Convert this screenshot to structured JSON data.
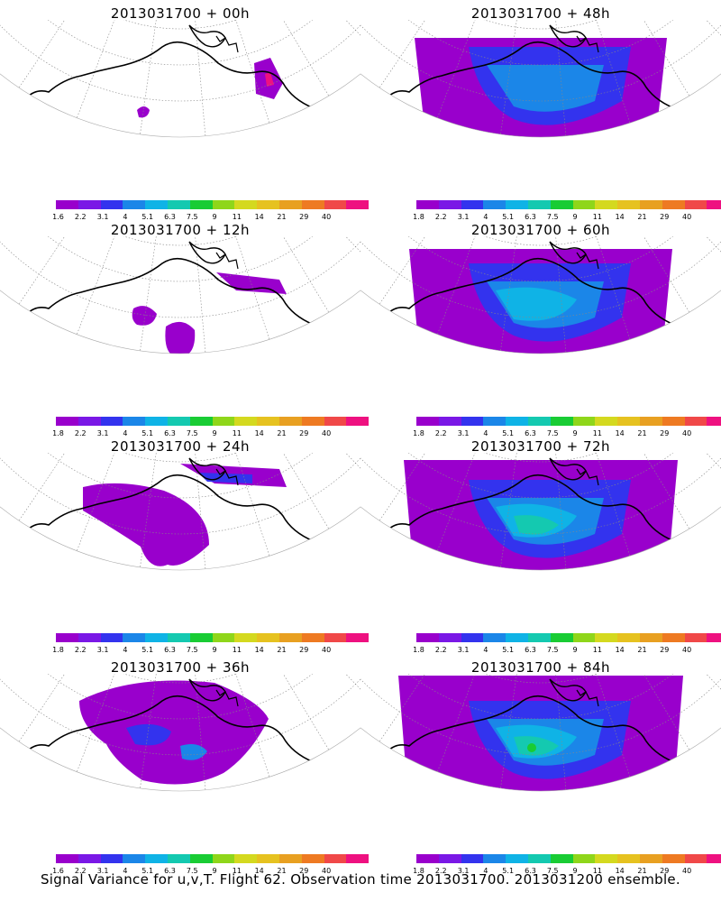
{
  "panels": [
    {
      "title": "2013031700 + 00h",
      "stage": 0
    },
    {
      "title": "2013031700 + 48h",
      "stage": 4
    },
    {
      "title": "2013031700 + 12h",
      "stage": 1
    },
    {
      "title": "2013031700 + 60h",
      "stage": 5
    },
    {
      "title": "2013031700 + 24h",
      "stage": 2
    },
    {
      "title": "2013031700 + 72h",
      "stage": 6
    },
    {
      "title": "2013031700 + 36h",
      "stage": 3
    },
    {
      "title": "2013031700 + 84h",
      "stage": 7
    }
  ],
  "colorbar": {
    "colors": [
      "#9900cc",
      "#7a18e6",
      "#3333ee",
      "#1b86e8",
      "#0fb3e6",
      "#14c9b0",
      "#19cc34",
      "#8fd61a",
      "#d4d91f",
      "#e6c220",
      "#e8a021",
      "#ee7a22",
      "#f04848",
      "#ee1180"
    ],
    "labels": [
      "1.6",
      "2.2",
      "3.1",
      "4",
      "5.1",
      "6.3",
      "7.5",
      "9",
      "11",
      "14",
      "21",
      "29",
      "40"
    ],
    "labels_alt": [
      "1.8",
      "2.2",
      "3.1",
      "4",
      "5.1",
      "6.3",
      "7.5",
      "9",
      "11",
      "14",
      "21",
      "29",
      "40"
    ]
  },
  "caption": "Signal Variance for u,v,T. Flight 62. Observation time 2013031700. 2013031200 ensemble."
}
